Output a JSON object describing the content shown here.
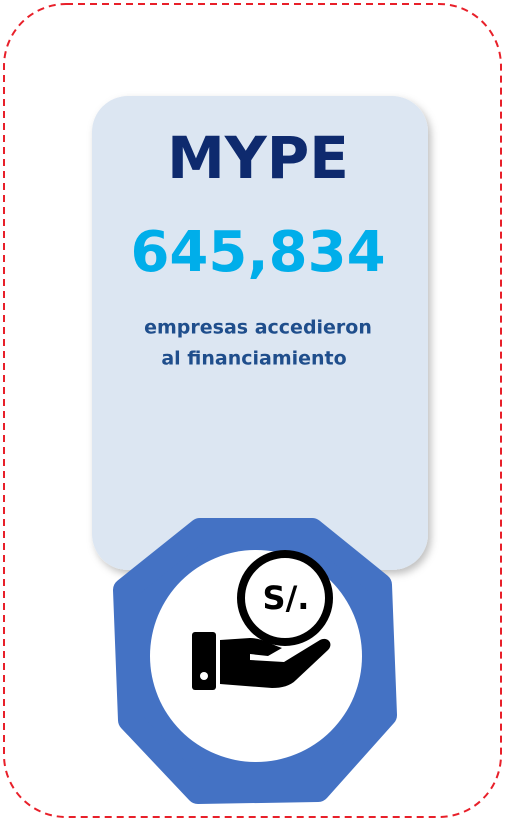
{
  "card": {
    "title": "MYPE",
    "value": "645,834",
    "caption": [
      "empresas accedieron",
      "al financiamiento"
    ]
  },
  "icon": {
    "label": "S/."
  }
}
